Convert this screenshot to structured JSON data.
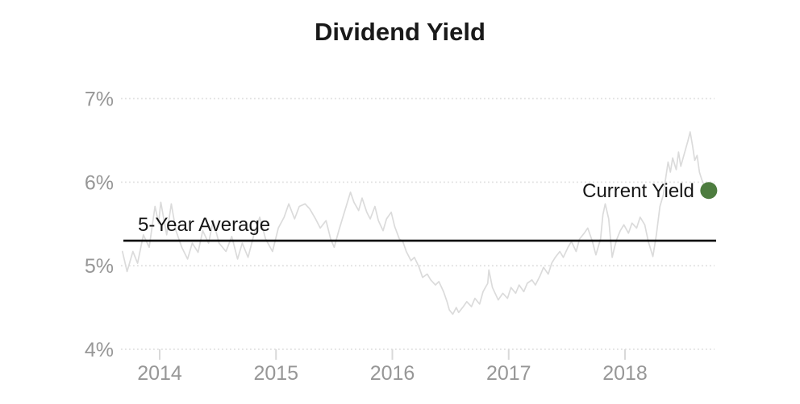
{
  "chart_data": {
    "type": "line",
    "title": "Dividend Yield",
    "xlabel": "",
    "ylabel": "",
    "xlim": [
      2013.65,
      2018.78
    ],
    "ylim": [
      3.85,
      7.3
    ],
    "grid": {
      "horizontal": true,
      "vertical": false,
      "style": "dotted"
    },
    "legend_position": "none",
    "y_ticks": [
      {
        "label": "7%",
        "value": 7
      },
      {
        "label": "6%",
        "value": 6
      },
      {
        "label": "5%",
        "value": 5
      },
      {
        "label": "4%",
        "value": 4
      }
    ],
    "x_ticks": [
      {
        "label": "2014",
        "value": 2014
      },
      {
        "label": "2015",
        "value": 2015
      },
      {
        "label": "2016",
        "value": 2016
      },
      {
        "label": "2017",
        "value": 2017
      },
      {
        "label": "2018",
        "value": 2018
      }
    ],
    "series": [
      {
        "name": "Dividend Yield",
        "color": "#dbdbdb",
        "points": [
          [
            2013.68,
            5.17
          ],
          [
            2013.72,
            4.93
          ],
          [
            2013.77,
            5.17
          ],
          [
            2013.81,
            5.03
          ],
          [
            2013.86,
            5.37
          ],
          [
            2013.91,
            5.22
          ],
          [
            2013.96,
            5.71
          ],
          [
            2013.99,
            5.51
          ],
          [
            2014.01,
            5.76
          ],
          [
            2014.06,
            5.37
          ],
          [
            2014.1,
            5.74
          ],
          [
            2014.14,
            5.42
          ],
          [
            2014.19,
            5.22
          ],
          [
            2014.24,
            5.08
          ],
          [
            2014.28,
            5.27
          ],
          [
            2014.33,
            5.16
          ],
          [
            2014.37,
            5.42
          ],
          [
            2014.42,
            5.27
          ],
          [
            2014.46,
            5.54
          ],
          [
            2014.51,
            5.27
          ],
          [
            2014.57,
            5.17
          ],
          [
            2014.62,
            5.35
          ],
          [
            2014.67,
            5.08
          ],
          [
            2014.71,
            5.27
          ],
          [
            2014.76,
            5.1
          ],
          [
            2014.81,
            5.37
          ],
          [
            2014.86,
            5.58
          ],
          [
            2014.91,
            5.32
          ],
          [
            2014.97,
            5.17
          ],
          [
            2015.02,
            5.45
          ],
          [
            2015.07,
            5.58
          ],
          [
            2015.11,
            5.74
          ],
          [
            2015.16,
            5.56
          ],
          [
            2015.2,
            5.71
          ],
          [
            2015.25,
            5.74
          ],
          [
            2015.29,
            5.68
          ],
          [
            2015.34,
            5.56
          ],
          [
            2015.38,
            5.45
          ],
          [
            2015.43,
            5.54
          ],
          [
            2015.47,
            5.32
          ],
          [
            2015.5,
            5.22
          ],
          [
            2015.54,
            5.42
          ],
          [
            2015.57,
            5.56
          ],
          [
            2015.61,
            5.74
          ],
          [
            2015.64,
            5.88
          ],
          [
            2015.67,
            5.76
          ],
          [
            2015.71,
            5.66
          ],
          [
            2015.74,
            5.81
          ],
          [
            2015.78,
            5.64
          ],
          [
            2015.81,
            5.56
          ],
          [
            2015.85,
            5.71
          ],
          [
            2015.88,
            5.54
          ],
          [
            2015.92,
            5.42
          ],
          [
            2015.95,
            5.56
          ],
          [
            2015.99,
            5.64
          ],
          [
            2016.02,
            5.47
          ],
          [
            2016.06,
            5.32
          ],
          [
            2016.09,
            5.29
          ],
          [
            2016.12,
            5.17
          ],
          [
            2016.16,
            5.06
          ],
          [
            2016.19,
            5.1
          ],
          [
            2016.23,
            4.98
          ],
          [
            2016.26,
            4.86
          ],
          [
            2016.3,
            4.9
          ],
          [
            2016.33,
            4.83
          ],
          [
            2016.37,
            4.77
          ],
          [
            2016.4,
            4.81
          ],
          [
            2016.44,
            4.69
          ],
          [
            2016.47,
            4.57
          ],
          [
            2016.49,
            4.47
          ],
          [
            2016.52,
            4.42
          ],
          [
            2016.55,
            4.5
          ],
          [
            2016.57,
            4.44
          ],
          [
            2016.61,
            4.51
          ],
          [
            2016.64,
            4.57
          ],
          [
            2016.68,
            4.51
          ],
          [
            2016.71,
            4.61
          ],
          [
            2016.75,
            4.54
          ],
          [
            2016.78,
            4.69
          ],
          [
            2016.82,
            4.79
          ],
          [
            2016.83,
            4.95
          ],
          [
            2016.86,
            4.74
          ],
          [
            2016.91,
            4.59
          ],
          [
            2016.95,
            4.67
          ],
          [
            2016.99,
            4.61
          ],
          [
            2017.02,
            4.74
          ],
          [
            2017.06,
            4.67
          ],
          [
            2017.09,
            4.77
          ],
          [
            2017.13,
            4.69
          ],
          [
            2017.16,
            4.79
          ],
          [
            2017.2,
            4.83
          ],
          [
            2017.23,
            4.77
          ],
          [
            2017.27,
            4.88
          ],
          [
            2017.3,
            4.98
          ],
          [
            2017.34,
            4.9
          ],
          [
            2017.37,
            5.03
          ],
          [
            2017.4,
            5.1
          ],
          [
            2017.44,
            5.17
          ],
          [
            2017.47,
            5.1
          ],
          [
            2017.51,
            5.22
          ],
          [
            2017.54,
            5.29
          ],
          [
            2017.58,
            5.17
          ],
          [
            2017.61,
            5.32
          ],
          [
            2017.65,
            5.39
          ],
          [
            2017.68,
            5.45
          ],
          [
            2017.72,
            5.29
          ],
          [
            2017.75,
            5.13
          ],
          [
            2017.79,
            5.32
          ],
          [
            2017.81,
            5.61
          ],
          [
            2017.83,
            5.74
          ],
          [
            2017.86,
            5.56
          ],
          [
            2017.89,
            5.1
          ],
          [
            2017.91,
            5.22
          ],
          [
            2017.93,
            5.32
          ],
          [
            2017.96,
            5.42
          ],
          [
            2017.99,
            5.49
          ],
          [
            2018.03,
            5.39
          ],
          [
            2018.06,
            5.51
          ],
          [
            2018.1,
            5.45
          ],
          [
            2018.13,
            5.58
          ],
          [
            2018.17,
            5.49
          ],
          [
            2018.2,
            5.29
          ],
          [
            2018.24,
            5.11
          ],
          [
            2018.27,
            5.37
          ],
          [
            2018.3,
            5.71
          ],
          [
            2018.33,
            5.85
          ],
          [
            2018.35,
            6.05
          ],
          [
            2018.37,
            6.24
          ],
          [
            2018.39,
            6.12
          ],
          [
            2018.41,
            6.29
          ],
          [
            2018.44,
            6.15
          ],
          [
            2018.46,
            6.36
          ],
          [
            2018.48,
            6.19
          ],
          [
            2018.5,
            6.29
          ],
          [
            2018.52,
            6.39
          ],
          [
            2018.54,
            6.49
          ],
          [
            2018.56,
            6.6
          ],
          [
            2018.58,
            6.44
          ],
          [
            2018.6,
            6.26
          ],
          [
            2018.62,
            6.32
          ],
          [
            2018.64,
            6.12
          ],
          [
            2018.66,
            6.03
          ],
          [
            2018.69,
            5.93
          ],
          [
            2018.71,
            5.9
          ]
        ]
      }
    ],
    "average_line": {
      "label": "5-Year Average",
      "value": 5.3,
      "color": "#000000"
    },
    "current_marker": {
      "label": "Current Yield",
      "year": 2018.72,
      "value": 5.9,
      "color": "#4d7c3f"
    },
    "colors": {
      "axis_text": "#979797",
      "gridline": "#e1e1e1",
      "title_text": "#191919"
    }
  }
}
